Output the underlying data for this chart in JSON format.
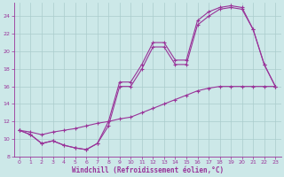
{
  "bg_color": "#cce8e8",
  "line_color": "#993399",
  "grid_color": "#aacccc",
  "xlabel": "Windchill (Refroidissement éolien,°C)",
  "xlim": [
    -0.5,
    23.5
  ],
  "ylim": [
    8,
    25.5
  ],
  "xticks": [
    0,
    1,
    2,
    3,
    4,
    5,
    6,
    7,
    8,
    9,
    10,
    11,
    12,
    13,
    14,
    15,
    16,
    17,
    18,
    19,
    20,
    21,
    22,
    23
  ],
  "yticks": [
    8,
    10,
    12,
    14,
    16,
    18,
    20,
    22,
    24
  ],
  "series": [
    {
      "x": [
        0,
        1,
        2,
        3,
        4,
        5,
        6,
        7,
        8,
        9,
        10,
        11,
        12,
        13,
        14,
        15,
        16,
        17,
        18,
        19,
        20,
        21,
        22,
        23
      ],
      "y": [
        11.0,
        10.5,
        9.5,
        9.8,
        9.3,
        9.0,
        8.8,
        9.5,
        12.0,
        16.5,
        16.5,
        18.5,
        21.0,
        21.0,
        19.0,
        19.0,
        23.5,
        24.5,
        25.0,
        25.2,
        25.0,
        22.5,
        18.5,
        16.0
      ]
    },
    {
      "x": [
        0,
        1,
        2,
        3,
        4,
        5,
        6,
        7,
        8,
        9,
        10,
        11,
        12,
        13,
        14,
        15,
        16,
        17,
        18,
        19,
        20,
        21,
        22,
        23
      ],
      "y": [
        11.0,
        10.5,
        9.5,
        9.8,
        9.3,
        9.0,
        8.8,
        9.5,
        11.5,
        16.0,
        16.0,
        18.0,
        20.5,
        20.5,
        18.5,
        18.5,
        23.0,
        24.0,
        24.8,
        25.0,
        24.8,
        22.5,
        18.5,
        16.0
      ]
    },
    {
      "x": [
        0,
        1,
        2,
        3,
        4,
        5,
        6,
        7,
        8,
        9,
        10,
        11,
        12,
        13,
        14,
        15,
        16,
        17,
        18,
        19,
        20,
        21,
        22,
        23
      ],
      "y": [
        11.0,
        10.8,
        10.5,
        10.8,
        11.0,
        11.2,
        11.5,
        11.8,
        12.0,
        12.3,
        12.5,
        13.0,
        13.5,
        14.0,
        14.5,
        15.0,
        15.5,
        15.8,
        16.0,
        16.0,
        16.0,
        16.0,
        16.0,
        16.0
      ]
    }
  ]
}
